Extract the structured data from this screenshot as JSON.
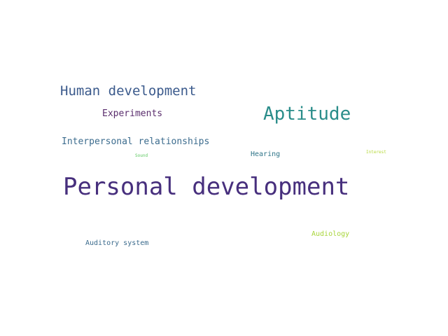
{
  "words": [
    {
      "text": "Personal development",
      "color": "#472f7d"
    },
    {
      "text": "Human development",
      "color": "#3b5a8c"
    },
    {
      "text": "Aptitude",
      "color": "#2a8d8a"
    },
    {
      "text": "Experiments",
      "color": "#5a2d6d"
    },
    {
      "text": "Interpersonal relationships",
      "color": "#3c6c8e"
    },
    {
      "text": "Hearing",
      "color": "#2e7488"
    },
    {
      "text": "Sound",
      "color": "#5ec962"
    },
    {
      "text": "Interest",
      "color": "#b5d93b"
    },
    {
      "text": "Audiology",
      "color": "#a8d53a"
    },
    {
      "text": "Auditory system",
      "color": "#3a6a8c"
    }
  ]
}
